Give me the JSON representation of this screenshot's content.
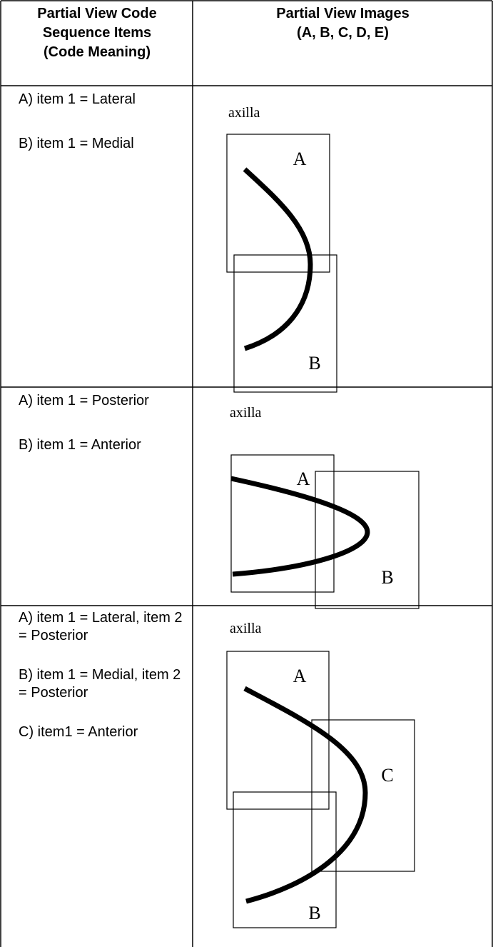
{
  "table": {
    "header": [
      [
        "Partial View Code",
        "Sequence Items",
        "(Code Meaning)"
      ],
      [
        "Partial View Images",
        "(A, B, C, D, E)"
      ]
    ],
    "rows": [
      {
        "items": [
          "A) item 1 = Lateral",
          "B) item 1 = Medial"
        ],
        "image": {
          "caption": "axilla",
          "labels": [
            "A",
            "B"
          ]
        }
      },
      {
        "items": [
          "A) item 1 = Posterior",
          "B) item 1 = Anterior"
        ],
        "image": {
          "caption": "axilla",
          "labels": [
            "A",
            "B"
          ]
        }
      },
      {
        "items": [
          "A) item 1 = Lateral, item 2 = Posterior",
          "B) item 1 = Medial, item 2 = Posterior",
          "C) item1 = Anterior"
        ],
        "image": {
          "caption": "axilla",
          "labels": [
            "A",
            "C",
            "B"
          ]
        }
      }
    ]
  }
}
